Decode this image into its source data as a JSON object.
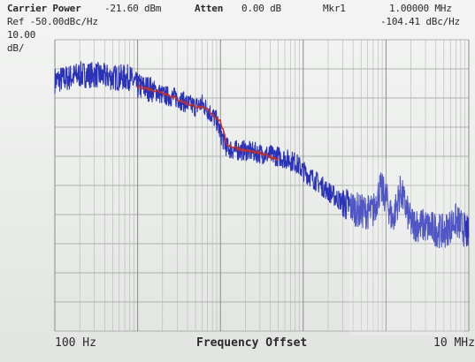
{
  "header": {
    "carrier_power_label": "Carrier Power",
    "carrier_power_value": "-21.60 dBm",
    "atten_label": "Atten",
    "atten_value": "0.00 dB",
    "mkr_label": "Mkr1",
    "mkr_freq": "1.00000 MHz",
    "ref_label": "Ref -50.00dBc/Hz",
    "mkr_value": "-104.41 dBc/Hz",
    "scale_value": "10.00",
    "scale_unit": "dB/"
  },
  "chart_data": {
    "type": "line",
    "title": "",
    "xlabel": "Frequency Offset",
    "ylabel": "",
    "x_scale": "log",
    "xlim": [
      100,
      10000000
    ],
    "ylim": [
      -150,
      -50
    ],
    "x_start_label": "100 Hz",
    "x_stop_label": "10 MHz",
    "grid": true,
    "series": [
      {
        "color": "#2a33b8",
        "x": [
          100,
          150,
          200,
          300,
          500,
          800,
          1000,
          1500,
          2000,
          3000,
          4000,
          5000,
          6000,
          7000,
          8000,
          9000,
          10000,
          11000,
          12000,
          15000,
          20000,
          30000,
          50000,
          80000,
          100000,
          150000,
          200000,
          300000,
          500000,
          700000,
          850000,
          1000000,
          1200000,
          1500000,
          2000000,
          3000000,
          5000000,
          7000000,
          10000000
        ],
        "y": [
          -64,
          -63,
          -62,
          -62,
          -63,
          -63,
          -66,
          -67,
          -69,
          -70,
          -72,
          -73,
          -72,
          -74,
          -76,
          -78,
          -82,
          -85,
          -87,
          -88,
          -88,
          -89,
          -90,
          -92,
          -95,
          -99,
          -102,
          -106,
          -109,
          -109,
          -101,
          -104,
          -112,
          -102,
          -113,
          -114,
          -116,
          -112,
          -117
        ]
      },
      {
        "color": "#c03030",
        "x": [
          1000,
          2000,
          4000,
          7000,
          10000,
          12000,
          15000,
          20000,
          30000,
          50000
        ],
        "y": [
          -66,
          -68,
          -72,
          -74,
          -78,
          -86,
          -87,
          -88,
          -89,
          -91
        ]
      }
    ],
    "marker": {
      "label": "1",
      "x": 1000000,
      "y": -104.41
    }
  }
}
